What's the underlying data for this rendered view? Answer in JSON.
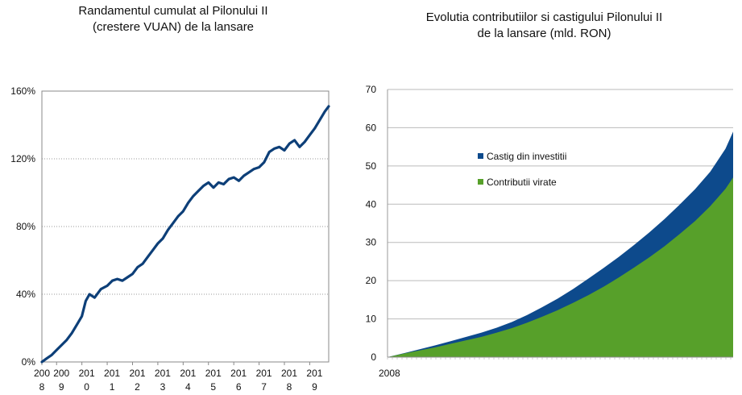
{
  "chart_data": [
    {
      "type": "line",
      "title": "Randamentul cumulat al Pilonului II",
      "subtitle": "(crestere VUAN) de la lansare",
      "xlabel": "",
      "ylabel": "",
      "ylim": [
        0,
        160
      ],
      "yticks": [
        "0%",
        "40%",
        "80%",
        "120%",
        "160%"
      ],
      "ytick_values": [
        0,
        40,
        80,
        120,
        160
      ],
      "xlim": [
        2008.42,
        2019.75
      ],
      "xticks": [
        {
          "top": "200",
          "bottom": "8",
          "x": 2008.42
        },
        {
          "top": "200",
          "bottom": "9",
          "x": 2009.0
        },
        {
          "top": "201",
          "bottom": "0",
          "x": 2010.0
        },
        {
          "top": "201",
          "bottom": "1",
          "x": 2011.0
        },
        {
          "top": "201",
          "bottom": "2",
          "x": 2012.0
        },
        {
          "top": "201",
          "bottom": "3",
          "x": 2013.0
        },
        {
          "top": "201",
          "bottom": "4",
          "x": 2014.0
        },
        {
          "top": "201",
          "bottom": "5",
          "x": 2015.0
        },
        {
          "top": "201",
          "bottom": "6",
          "x": 2016.0
        },
        {
          "top": "201",
          "bottom": "7",
          "x": 2017.0
        },
        {
          "top": "201",
          "bottom": "8",
          "x": 2018.0
        },
        {
          "top": "201",
          "bottom": "9",
          "x": 2019.0
        }
      ],
      "grid": true,
      "color": "#0d3f78",
      "series": [
        {
          "x": [
            2008.42,
            2008.6,
            2008.8,
            2009.0,
            2009.2,
            2009.4,
            2009.6,
            2009.8,
            2010.0,
            2010.15,
            2010.3,
            2010.5,
            2010.75,
            2011.0,
            2011.2,
            2011.4,
            2011.6,
            2011.8,
            2012.0,
            2012.2,
            2012.4,
            2012.6,
            2012.8,
            2013.0,
            2013.2,
            2013.4,
            2013.6,
            2013.8,
            2014.0,
            2014.2,
            2014.4,
            2014.6,
            2014.8,
            2015.0,
            2015.2,
            2015.4,
            2015.6,
            2015.8,
            2016.0,
            2016.2,
            2016.4,
            2016.6,
            2016.8,
            2017.0,
            2017.2,
            2017.4,
            2017.6,
            2017.8,
            2018.0,
            2018.2,
            2018.4,
            2018.6,
            2018.8,
            2019.0,
            2019.2,
            2019.4,
            2019.6,
            2019.75
          ],
          "y": [
            0,
            2,
            4,
            7,
            10,
            13,
            17,
            22,
            27,
            36,
            40,
            38,
            43,
            45,
            48,
            49,
            48,
            50,
            52,
            56,
            58,
            62,
            66,
            70,
            73,
            78,
            82,
            86,
            89,
            94,
            98,
            101,
            104,
            106,
            103,
            106,
            105,
            108,
            109,
            107,
            110,
            112,
            114,
            115,
            118,
            124,
            126,
            127,
            125,
            129,
            131,
            127,
            130,
            134,
            138,
            143,
            148,
            151
          ]
        }
      ]
    },
    {
      "type": "area",
      "title": "Evolutia contributiilor si castigului Pilonului II",
      "subtitle": "de la lansare (mld. RON)",
      "xlabel": "",
      "ylabel": "",
      "ylim": [
        0,
        70
      ],
      "yticks": [
        "0",
        "10",
        "20",
        "30",
        "40",
        "50",
        "60",
        "70"
      ],
      "ytick_values": [
        0,
        10,
        20,
        30,
        40,
        50,
        60,
        70
      ],
      "xticks": [
        "2008"
      ],
      "xlim": [
        2008.42,
        2019.75
      ],
      "grid": true,
      "legend": "top-left-inside",
      "stacked": true,
      "x": [
        2008.42,
        2009.0,
        2009.5,
        2010.0,
        2010.5,
        2011.0,
        2011.5,
        2012.0,
        2012.5,
        2013.0,
        2013.5,
        2014.0,
        2014.5,
        2015.0,
        2015.5,
        2016.0,
        2016.5,
        2017.0,
        2017.5,
        2018.0,
        2018.5,
        2019.0,
        2019.5,
        2019.75
      ],
      "series": [
        {
          "name": "Contributii virate",
          "color": "#57a02a",
          "values": [
            0,
            1.0,
            1.8,
            2.6,
            3.5,
            4.4,
            5.3,
            6.4,
            7.6,
            9.0,
            10.6,
            12.3,
            14.2,
            16.2,
            18.4,
            20.8,
            23.4,
            26.1,
            29.0,
            32.2,
            35.6,
            39.5,
            44.0,
            47.0
          ]
        },
        {
          "name": "Castig din investitii",
          "color": "#0d4a8c",
          "values": [
            0,
            0.1,
            0.3,
            0.5,
            0.7,
            0.9,
            1.1,
            1.3,
            1.6,
            2.0,
            2.5,
            3.0,
            3.6,
            4.3,
            4.9,
            5.4,
            5.9,
            6.5,
            7.1,
            7.7,
            8.3,
            9.0,
            10.5,
            12.0
          ]
        }
      ]
    }
  ]
}
